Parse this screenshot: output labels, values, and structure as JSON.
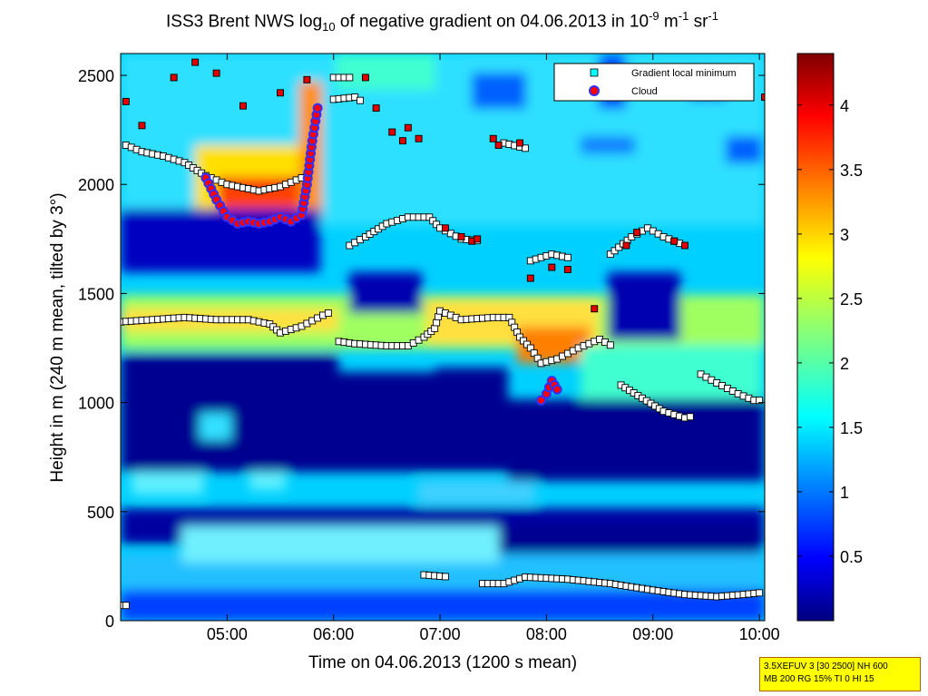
{
  "title": {
    "main": "ISS3 Brent NWS log",
    "sub": "10",
    "after_sub": " of negative gradient on 04.06.2013 in 10",
    "sup1": "-9",
    "unit1": " m",
    "sup2": "-1",
    "unit2": " sr",
    "sup3": "-1"
  },
  "infobox": {
    "line1": "3.5XEFUV 3 [30 2500] NH 600",
    "line2": "MB 200 RG 15% TI 0 HI 15"
  },
  "chart_data": {
    "type": "heatmap",
    "xlabel": "Time on 04.06.2013 (1200 s mean)",
    "ylabel": "Height in m (240 m mean, tilted by 3°)",
    "x_ticks": [
      "05:00",
      "06:00",
      "07:00",
      "08:00",
      "09:00",
      "10:00"
    ],
    "x_tick_hours": [
      5,
      6,
      7,
      8,
      9,
      10
    ],
    "xlim_hours": [
      4.0,
      10.05
    ],
    "y_ticks": [
      0,
      500,
      1000,
      1500,
      2000,
      2500
    ],
    "ylim": [
      0,
      2600
    ],
    "colorbar_ticks": [
      "0.5",
      "1",
      "1.5",
      "2",
      "2.5",
      "3",
      "3.5",
      "4"
    ],
    "colorbar_tick_values": [
      0.5,
      1,
      1.5,
      2,
      2.5,
      3,
      3.5,
      4
    ],
    "clim": [
      0,
      4.4
    ],
    "colormap": "jet",
    "legend": [
      {
        "label": "Gradient local minimum",
        "marker": "square",
        "color": "#00ffff"
      },
      {
        "label": "Cloud",
        "marker": "circle",
        "color": "#ff0000"
      }
    ],
    "legend_position": "top-right",
    "gradient_minimum_lines": [
      {
        "points": [
          [
            4.0,
            70
          ],
          [
            4.1,
            70
          ]
        ]
      },
      {
        "points": [
          [
            4.0,
            1370
          ],
          [
            4.3,
            1380
          ],
          [
            4.6,
            1390
          ],
          [
            4.9,
            1380
          ],
          [
            5.2,
            1380
          ],
          [
            5.4,
            1360
          ],
          [
            5.5,
            1320
          ],
          [
            5.7,
            1350
          ],
          [
            5.9,
            1400
          ],
          [
            6.0,
            1420
          ]
        ]
      },
      {
        "points": [
          [
            6.05,
            1280
          ],
          [
            6.2,
            1270
          ],
          [
            6.5,
            1260
          ],
          [
            6.7,
            1260
          ],
          [
            6.85,
            1300
          ],
          [
            6.95,
            1340
          ],
          [
            7.0,
            1420
          ],
          [
            7.2,
            1380
          ],
          [
            7.5,
            1390
          ],
          [
            7.65,
            1390
          ],
          [
            7.75,
            1300
          ],
          [
            7.85,
            1250
          ],
          [
            7.95,
            1180
          ],
          [
            8.1,
            1200
          ],
          [
            8.3,
            1250
          ],
          [
            8.5,
            1290
          ],
          [
            8.65,
            1250
          ]
        ]
      },
      {
        "points": [
          [
            4.05,
            2180
          ],
          [
            4.2,
            2150
          ],
          [
            4.4,
            2130
          ],
          [
            4.6,
            2100
          ],
          [
            4.8,
            2040
          ],
          [
            5.0,
            2000
          ],
          [
            5.3,
            1970
          ],
          [
            5.5,
            1990
          ],
          [
            5.7,
            2030
          ],
          [
            5.8,
            2050
          ]
        ]
      },
      {
        "points": [
          [
            6.15,
            1720
          ],
          [
            6.3,
            1760
          ],
          [
            6.5,
            1820
          ],
          [
            6.7,
            1850
          ],
          [
            6.9,
            1850
          ],
          [
            7.0,
            1800
          ],
          [
            7.2,
            1750
          ],
          [
            7.4,
            1740
          ]
        ]
      },
      {
        "points": [
          [
            6.0,
            2390
          ],
          [
            6.2,
            2400
          ],
          [
            6.3,
            2370
          ]
        ]
      },
      {
        "points": [
          [
            6.0,
            2490
          ],
          [
            6.2,
            2490
          ]
        ]
      },
      {
        "points": [
          [
            7.85,
            1650
          ],
          [
            8.05,
            1680
          ],
          [
            8.25,
            1660
          ]
        ]
      },
      {
        "points": [
          [
            8.6,
            1680
          ],
          [
            8.8,
            1760
          ],
          [
            8.95,
            1800
          ],
          [
            9.1,
            1760
          ],
          [
            9.3,
            1720
          ]
        ]
      },
      {
        "points": [
          [
            8.7,
            1080
          ],
          [
            8.9,
            1020
          ],
          [
            9.1,
            960
          ],
          [
            9.3,
            930
          ],
          [
            9.4,
            940
          ]
        ]
      },
      {
        "points": [
          [
            9.45,
            1130
          ],
          [
            9.6,
            1090
          ],
          [
            9.8,
            1040
          ],
          [
            9.95,
            1010
          ],
          [
            10.05,
            1010
          ]
        ]
      },
      {
        "points": [
          [
            6.85,
            210
          ],
          [
            7.1,
            200
          ]
        ]
      },
      {
        "points": [
          [
            7.4,
            170
          ],
          [
            7.6,
            170
          ],
          [
            7.8,
            200
          ],
          [
            8.2,
            190
          ],
          [
            8.6,
            170
          ],
          [
            9.0,
            140
          ],
          [
            9.3,
            120
          ],
          [
            9.6,
            110
          ],
          [
            9.85,
            120
          ],
          [
            10.05,
            130
          ]
        ]
      },
      {
        "points": [
          [
            7.6,
            2190
          ],
          [
            7.85,
            2160
          ]
        ]
      }
    ],
    "cloud_points_hours_m": [
      [
        4.8,
        2030
      ],
      [
        4.9,
        1930
      ],
      [
        5.0,
        1850
      ],
      [
        5.1,
        1820
      ],
      [
        5.2,
        1830
      ],
      [
        5.3,
        1820
      ],
      [
        5.4,
        1830
      ],
      [
        5.5,
        1850
      ],
      [
        5.6,
        1830
      ],
      [
        5.7,
        1860
      ],
      [
        5.75,
        2000
      ],
      [
        5.8,
        2200
      ],
      [
        5.85,
        2350
      ],
      [
        7.95,
        1010
      ],
      [
        8.0,
        1040
      ],
      [
        8.05,
        1100
      ],
      [
        8.1,
        1060
      ]
    ]
  }
}
